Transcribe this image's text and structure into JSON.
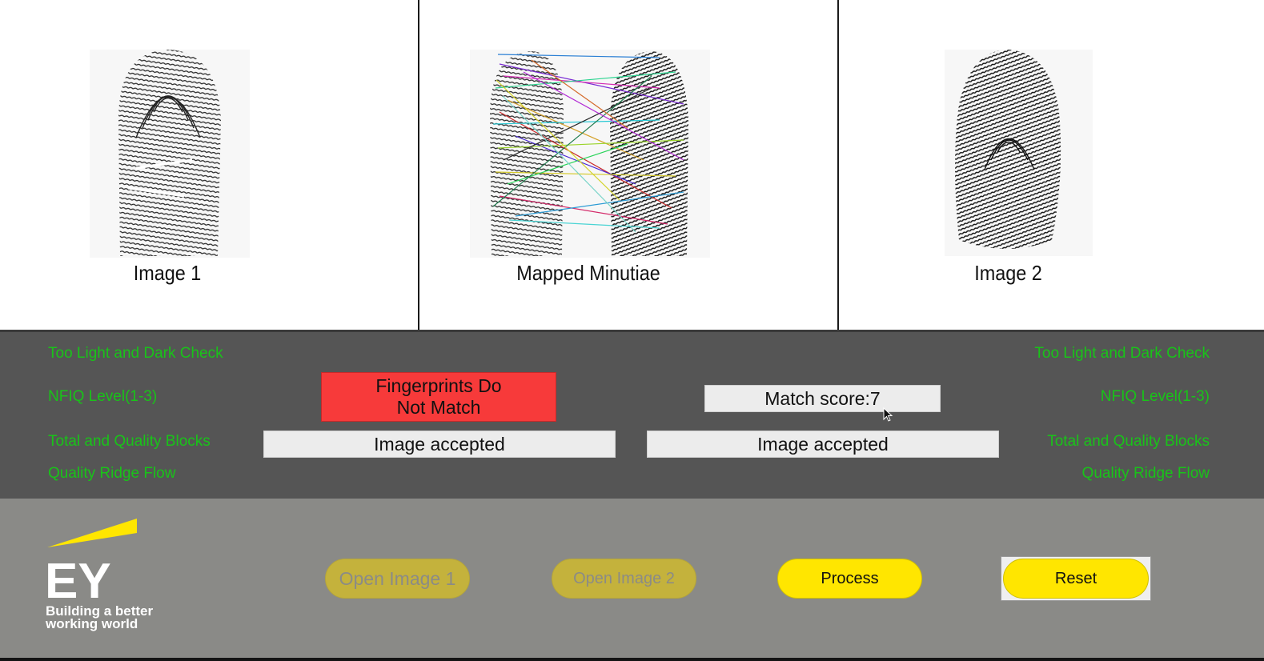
{
  "panels": {
    "image1_caption": "Image 1",
    "mapped_caption": "Mapped Minutiae",
    "image2_caption": "Image 2"
  },
  "left_labels": {
    "light_dark": "Too Light and Dark Check",
    "nfiq": "NFIQ Level(1-3)",
    "blocks": "Total and Quality Blocks",
    "ridge": "Quality Ridge Flow"
  },
  "right_labels": {
    "light_dark": "Too Light and Dark Check",
    "nfiq": "NFIQ Level(1-3)",
    "blocks": "Total and Quality Blocks",
    "ridge": "Quality Ridge Flow"
  },
  "result": {
    "verdict_line1": "Fingerprints Do",
    "verdict_line2": "Not Match",
    "match_score": "Match score:7",
    "image1_status": "Image accepted",
    "image2_status": "Image accepted"
  },
  "buttons": {
    "open1": "Open Image 1",
    "open2": "Open Image 2",
    "process": "Process",
    "reset": "Reset"
  },
  "brand": {
    "logo_text": "EY",
    "tagline_line1": "Building a better",
    "tagline_line2": "working world",
    "accent": "#ffe600"
  },
  "colors": {
    "label_green": "#19c319",
    "verdict_red": "#f73a3a",
    "info_bg": "#555555",
    "bottom_bg": "#8a8a87"
  },
  "icons": [
    "fingerprint-image-icon",
    "mouse-cursor-icon",
    "ey-logo"
  ]
}
